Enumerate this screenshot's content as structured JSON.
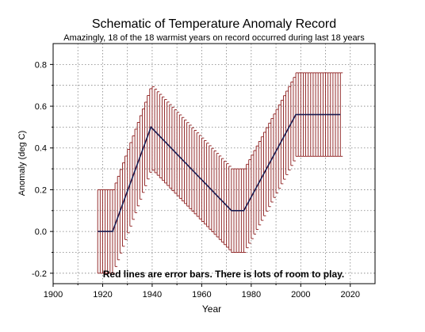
{
  "chart_data": {
    "type": "line",
    "title": "Schematic of Temperature Anomaly Record",
    "subtitle": "Amazingly, 18 of the 18 warmist years on record occurred during last 18 years",
    "xlabel": "Year",
    "ylabel": "Anomaly (deg C)",
    "annotation": "Red lines are error bars. There is lots of room to play.",
    "xlim": [
      1900,
      2030
    ],
    "ylim": [
      -0.25,
      0.9
    ],
    "x_ticks": [
      1900,
      1920,
      1940,
      1960,
      1980,
      2000,
      2020
    ],
    "x_tick_labels": [
      "1900",
      "1920",
      "1940",
      "1960",
      "1980",
      "2000",
      "2020"
    ],
    "y_ticks": [
      -0.2,
      0.0,
      0.2,
      0.4,
      0.6,
      0.8
    ],
    "y_tick_labels": [
      "-0.2",
      "0.0",
      "0.2",
      "0.4",
      "0.6",
      "0.8"
    ],
    "grid": true,
    "series": [
      {
        "color": "#1a1a4e",
        "x": [
          1918,
          1924,
          1939.5,
          1972,
          1977,
          1998,
          2016
        ],
        "y": [
          0.0,
          0.0,
          0.5,
          0.1,
          0.1,
          0.56,
          0.56
        ]
      }
    ],
    "error_bars": {
      "color": "#8b1a1a",
      "x_start": 1918,
      "x_end": 2016,
      "step": 1,
      "halfwidth": 0.2
    },
    "colors": {
      "line": "#1a1a4e",
      "error_bar": "#8b1a1a",
      "grid": "#808080",
      "axis": "#000000"
    }
  }
}
